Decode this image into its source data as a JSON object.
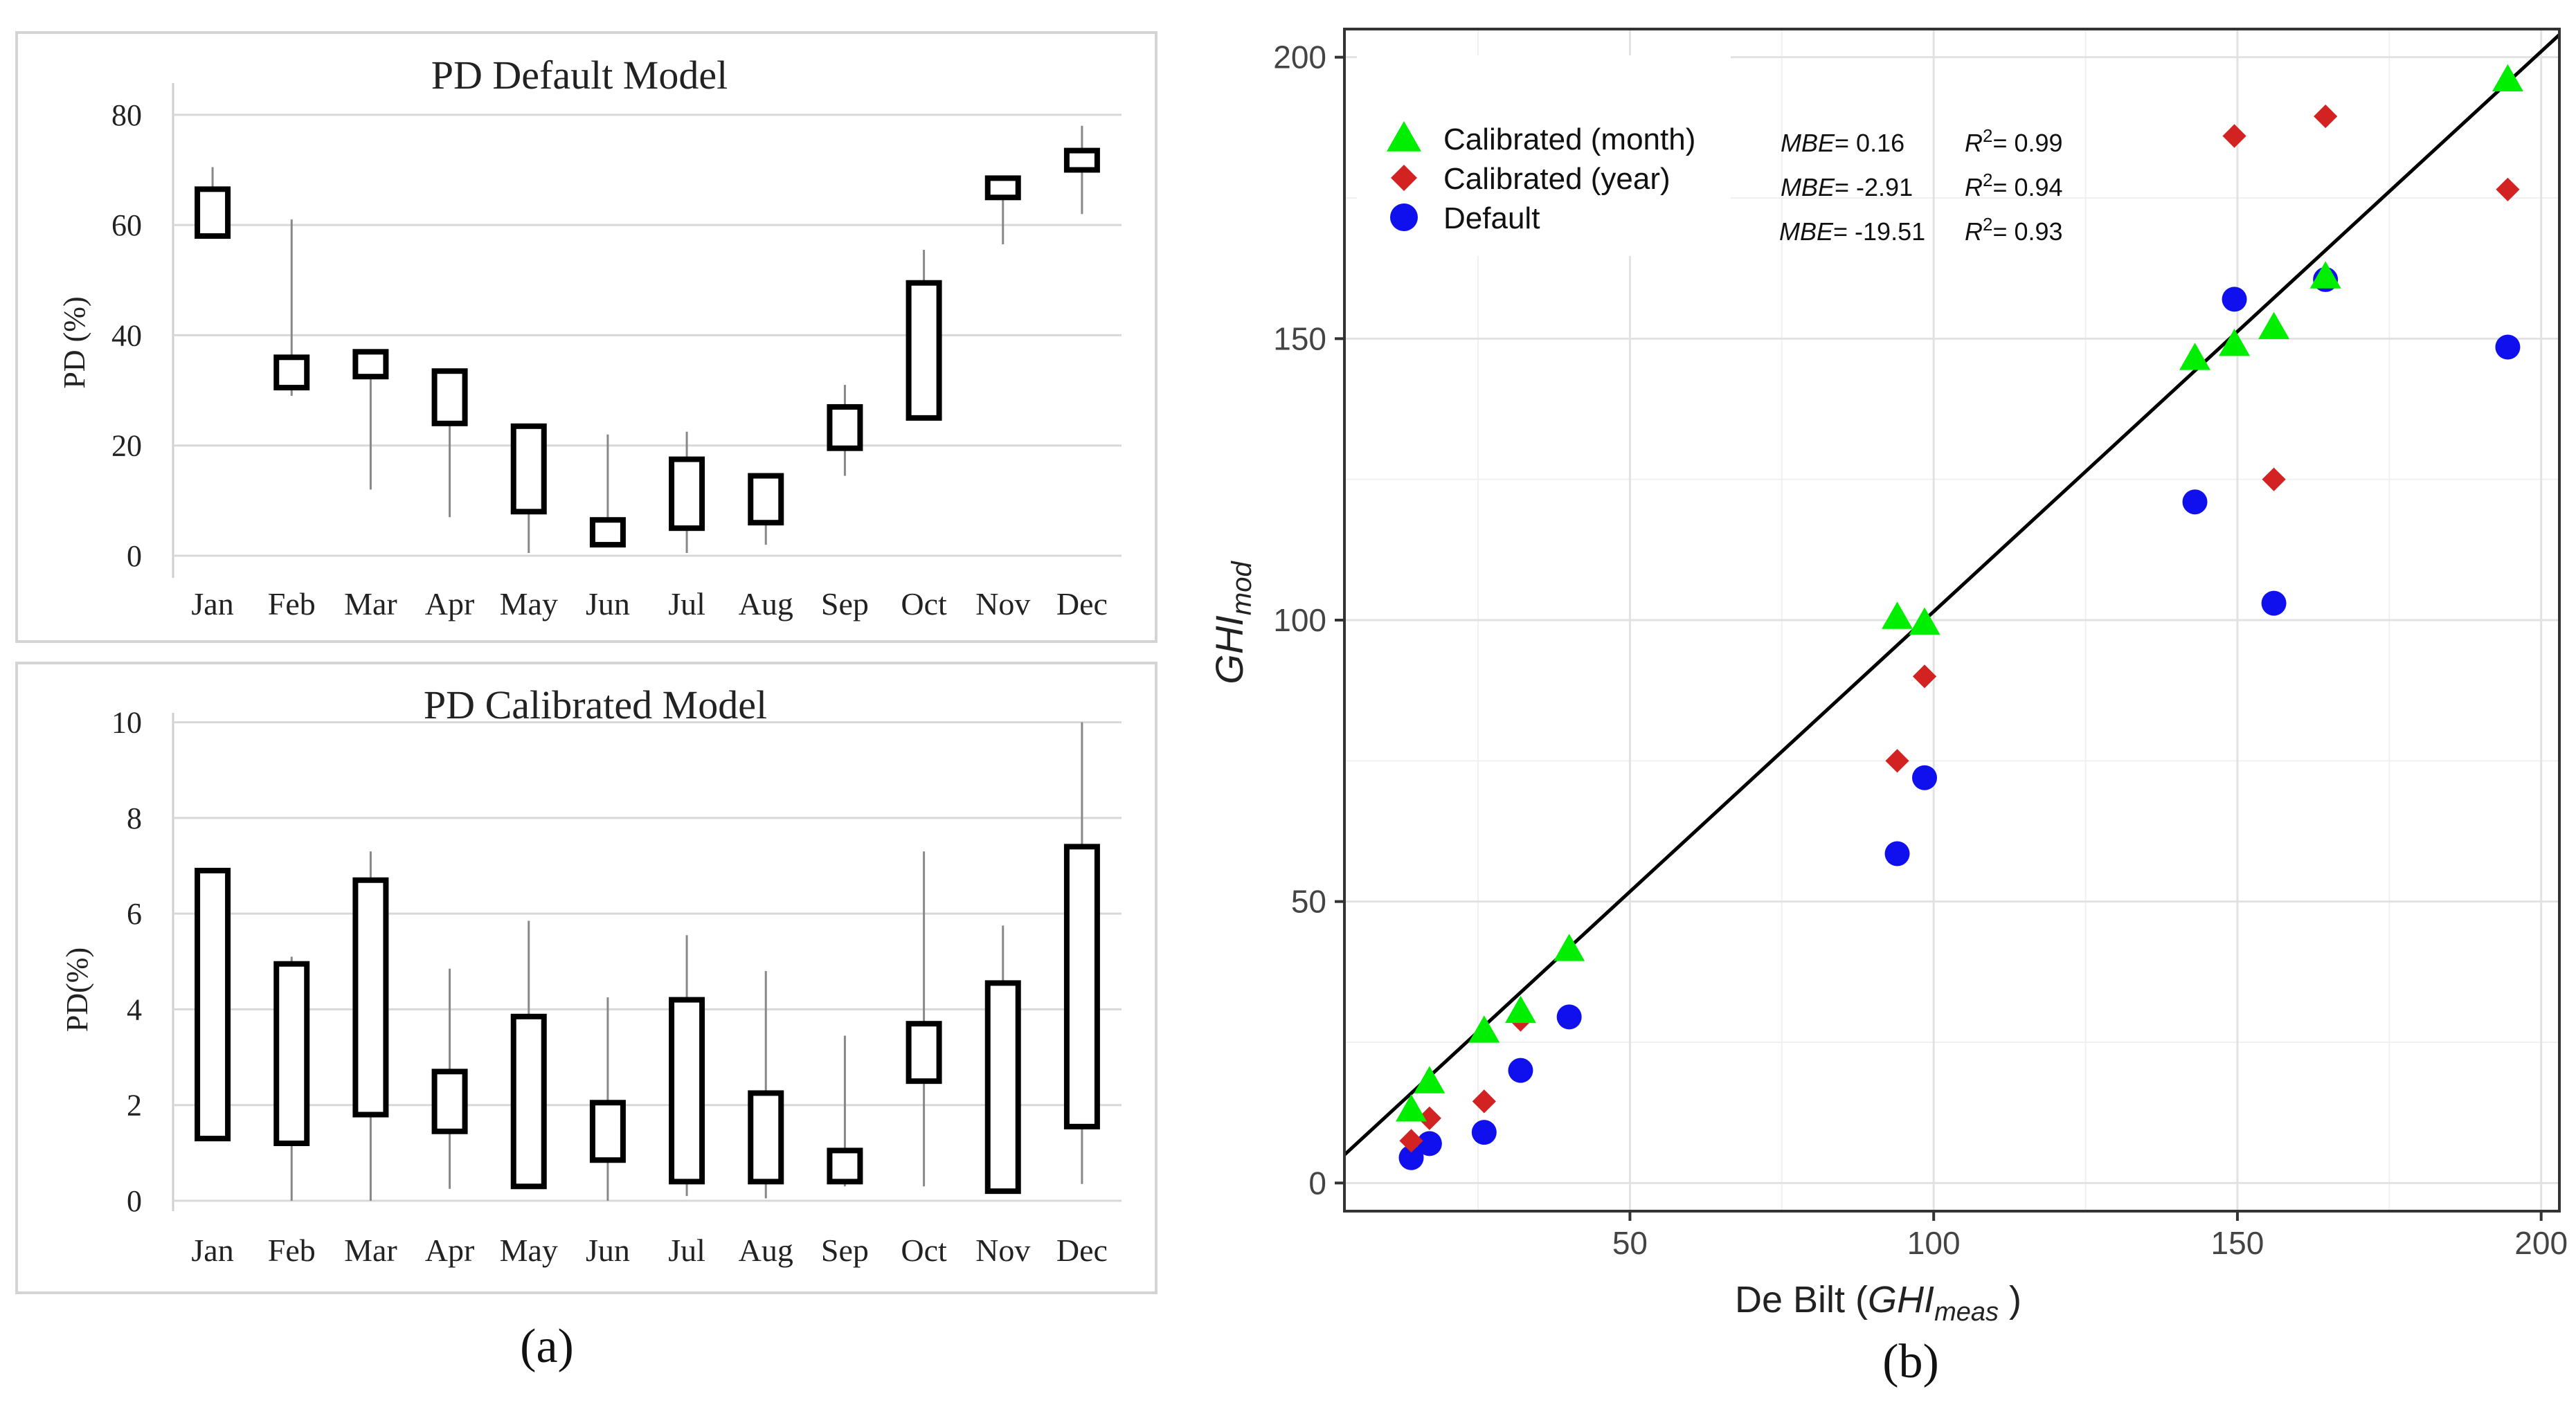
{
  "panel_labels": {
    "a": "(a)",
    "b": "(b)"
  },
  "chart_data": [
    {
      "type": "candlestick",
      "title": "PD Default Model",
      "ylabel": "PD (%)",
      "ylim": [
        0,
        85
      ],
      "yticks": [
        "0",
        "20",
        "40",
        "60",
        "80"
      ],
      "categories": [
        "Jan",
        "Feb",
        "Mar",
        "Apr",
        "May",
        "Jun",
        "Jul",
        "Aug",
        "Sep",
        "Oct",
        "Nov",
        "Dec"
      ],
      "boxes": [
        {
          "low": 58,
          "high": 66.5,
          "min": 58,
          "max": 70.5
        },
        {
          "low": 30.5,
          "high": 36,
          "min": 29,
          "max": 61
        },
        {
          "low": 32.5,
          "high": 37,
          "min": 12,
          "max": 37
        },
        {
          "low": 24,
          "high": 33.5,
          "min": 7,
          "max": 33.5
        },
        {
          "low": 8,
          "high": 23.5,
          "min": 0.5,
          "max": 23.5
        },
        {
          "low": 2,
          "high": 6.5,
          "min": 2,
          "max": 22
        },
        {
          "low": 5,
          "high": 17.5,
          "min": 0.5,
          "max": 22.5
        },
        {
          "low": 6,
          "high": 14.5,
          "min": 2,
          "max": 14.5
        },
        {
          "low": 19.5,
          "high": 27,
          "min": 14.5,
          "max": 31
        },
        {
          "low": 25,
          "high": 49.5,
          "min": 25,
          "max": 55.5
        },
        {
          "low": 65,
          "high": 68.5,
          "min": 56.5,
          "max": 68.5
        },
        {
          "low": 70,
          "high": 73.5,
          "min": 62,
          "max": 78
        }
      ]
    },
    {
      "type": "candlestick",
      "title": "PD Calibrated Model",
      "ylabel": "PD(%)",
      "ylim": [
        0,
        10.5
      ],
      "yticks": [
        "0",
        "2",
        "4",
        "6",
        "8",
        "10"
      ],
      "categories": [
        "Jan",
        "Feb",
        "Mar",
        "Apr",
        "May",
        "Jun",
        "Jul",
        "Aug",
        "Sep",
        "Oct",
        "Nov",
        "Dec"
      ],
      "boxes": [
        {
          "low": 1.3,
          "high": 6.9,
          "min": 1.3,
          "max": 6.9
        },
        {
          "low": 1.2,
          "high": 4.95,
          "min": 0,
          "max": 5.1
        },
        {
          "low": 1.8,
          "high": 6.7,
          "min": 0,
          "max": 7.3
        },
        {
          "low": 1.45,
          "high": 2.7,
          "min": 0.25,
          "max": 4.85
        },
        {
          "low": 0.3,
          "high": 3.85,
          "min": 0.3,
          "max": 5.85
        },
        {
          "low": 0.85,
          "high": 2.05,
          "min": 0,
          "max": 4.25
        },
        {
          "low": 0.4,
          "high": 4.2,
          "min": 0.1,
          "max": 5.55
        },
        {
          "low": 0.4,
          "high": 2.25,
          "min": 0.05,
          "max": 4.8
        },
        {
          "low": 0.4,
          "high": 1.05,
          "min": 0.3,
          "max": 3.45
        },
        {
          "low": 2.5,
          "high": 3.7,
          "min": 0.3,
          "max": 7.3
        },
        {
          "low": 0.2,
          "high": 4.55,
          "min": 0.2,
          "max": 5.75
        },
        {
          "low": 1.55,
          "high": 7.4,
          "min": 0.35,
          "max": 10
        }
      ]
    },
    {
      "type": "scatter",
      "xlabel_prefix": "De Bilt (",
      "xlabel_sym": "GHI",
      "xlabel_sub": "meas",
      "xlabel_suffix": " )",
      "ylabel_sym": "GHI",
      "ylabel_sub": "mod",
      "xlim": [
        3,
        203
      ],
      "ylim": [
        -5,
        205
      ],
      "xticks": [
        50,
        100,
        150,
        200
      ],
      "yticks": [
        0,
        50,
        100,
        150,
        200
      ],
      "xtick_labels": [
        "50",
        "100",
        "150",
        "200"
      ],
      "ytick_labels": [
        "0",
        "50",
        "100",
        "150",
        "200"
      ],
      "grid": true,
      "legend_position": "top-left",
      "reference_line": {
        "x": [
          3,
          203
        ],
        "y": [
          5,
          204
        ]
      },
      "series": [
        {
          "name": "Calibrated (month)",
          "color": "#00ee00",
          "marker": "triangle",
          "mbe_label": "MBE",
          "mbe_value": "= 0.16",
          "r2_label": "R",
          "r2_value": "= 0.99",
          "points": [
            [
              14,
              13
            ],
            [
              17,
              18
            ],
            [
              26,
              27
            ],
            [
              32,
              30.5
            ],
            [
              40,
              41.5
            ],
            [
              94,
              100.5
            ],
            [
              98.5,
              99.5
            ],
            [
              143,
              146.5
            ],
            [
              149.5,
              149
            ],
            [
              156,
              152
            ],
            [
              164.5,
              161
            ],
            [
              194.5,
              196
            ]
          ]
        },
        {
          "name": "Calibrated (year)",
          "color": "#d22222",
          "marker": "diamond",
          "mbe_label": "MBE",
          "mbe_value": "= -2.91",
          "r2_label": "R",
          "r2_value": "= 0.94",
          "points": [
            [
              14,
              7.5
            ],
            [
              17,
              11.5
            ],
            [
              26,
              14.5
            ],
            [
              32,
              29
            ],
            [
              94,
              75
            ],
            [
              98.5,
              90
            ],
            [
              149.5,
              186
            ],
            [
              156,
              125
            ],
            [
              164.5,
              189.5
            ],
            [
              194.5,
              176.5
            ]
          ]
        },
        {
          "name": "Default",
          "color": "#1010ee",
          "marker": "circle",
          "mbe_label": "MBE",
          "mbe_value": "= -19.51",
          "r2_label": "R",
          "r2_value": "= 0.93",
          "points": [
            [
              14,
              4.5
            ],
            [
              17,
              7
            ],
            [
              26,
              9
            ],
            [
              32,
              20
            ],
            [
              40,
              29.5
            ],
            [
              94,
              58.5
            ],
            [
              98.5,
              72
            ],
            [
              143,
              121
            ],
            [
              149.5,
              157
            ],
            [
              156,
              103
            ],
            [
              164.5,
              160.5
            ],
            [
              194.5,
              148.5
            ]
          ]
        }
      ]
    }
  ]
}
